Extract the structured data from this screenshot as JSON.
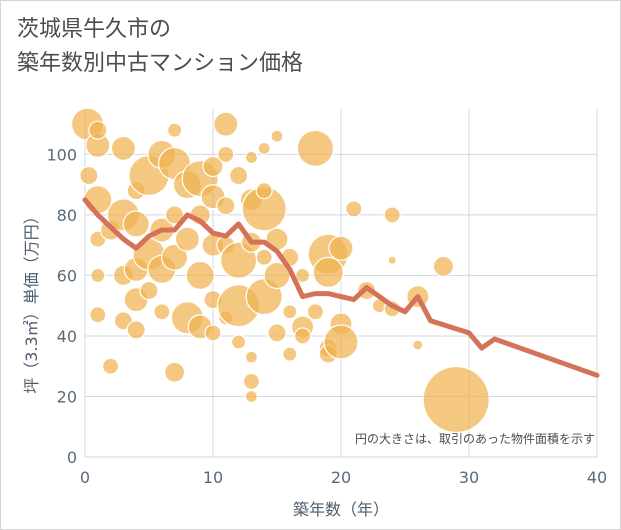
{
  "title_line1": "茨城県牛久市の",
  "title_line2": "築年数別中古マンション価格",
  "colors": {
    "bubble": "#f0b34f",
    "line": "#d4725a",
    "grid": "#cfd8e0",
    "bubble_stroke": "#ffffff"
  },
  "chart_data": {
    "type": "scatter",
    "xlabel": "築年数（年）",
    "ylabel": "坪（3.3㎡）単価（万円）",
    "xlim": [
      0,
      40
    ],
    "ylim": [
      0,
      115
    ],
    "xticks": [
      "0",
      "10",
      "20",
      "30",
      "40"
    ],
    "yticks": [
      "0",
      "20",
      "40",
      "60",
      "80",
      "100"
    ],
    "grid": true,
    "annotation": "円の大きさは、取引のあった物件面積を示す",
    "bubbles": [
      {
        "x": 0.2,
        "y": 110,
        "s": 16
      },
      {
        "x": 0.3,
        "y": 93,
        "s": 9
      },
      {
        "x": 1,
        "y": 103,
        "s": 12
      },
      {
        "x": 1,
        "y": 85,
        "s": 14
      },
      {
        "x": 1,
        "y": 72,
        "s": 8
      },
      {
        "x": 1,
        "y": 60,
        "s": 7
      },
      {
        "x": 1,
        "y": 47,
        "s": 8
      },
      {
        "x": 2,
        "y": 30,
        "s": 8
      },
      {
        "x": 1,
        "y": 108,
        "s": 9
      },
      {
        "x": 2,
        "y": 75,
        "s": 10
      },
      {
        "x": 3,
        "y": 102,
        "s": 12
      },
      {
        "x": 3,
        "y": 80,
        "s": 16
      },
      {
        "x": 3,
        "y": 60,
        "s": 10
      },
      {
        "x": 3,
        "y": 45,
        "s": 9
      },
      {
        "x": 4,
        "y": 88,
        "s": 9
      },
      {
        "x": 4,
        "y": 77,
        "s": 13
      },
      {
        "x": 4,
        "y": 62,
        "s": 12
      },
      {
        "x": 4,
        "y": 52,
        "s": 12
      },
      {
        "x": 4,
        "y": 42,
        "s": 9
      },
      {
        "x": 5,
        "y": 93,
        "s": 20
      },
      {
        "x": 5,
        "y": 67,
        "s": 16
      },
      {
        "x": 5,
        "y": 55,
        "s": 9
      },
      {
        "x": 6,
        "y": 100,
        "s": 14
      },
      {
        "x": 6,
        "y": 75,
        "s": 12
      },
      {
        "x": 6,
        "y": 62,
        "s": 14
      },
      {
        "x": 6,
        "y": 48,
        "s": 8
      },
      {
        "x": 7,
        "y": 97,
        "s": 16
      },
      {
        "x": 7,
        "y": 80,
        "s": 9
      },
      {
        "x": 7,
        "y": 66,
        "s": 13
      },
      {
        "x": 7,
        "y": 28,
        "s": 10
      },
      {
        "x": 7,
        "y": 108,
        "s": 7
      },
      {
        "x": 8,
        "y": 90,
        "s": 14
      },
      {
        "x": 8,
        "y": 72,
        "s": 12
      },
      {
        "x": 8,
        "y": 46,
        "s": 16
      },
      {
        "x": 9,
        "y": 92,
        "s": 18
      },
      {
        "x": 9,
        "y": 60,
        "s": 14
      },
      {
        "x": 9,
        "y": 43,
        "s": 12
      },
      {
        "x": 9,
        "y": 80,
        "s": 10
      },
      {
        "x": 10,
        "y": 96,
        "s": 10
      },
      {
        "x": 10,
        "y": 86,
        "s": 12
      },
      {
        "x": 10,
        "y": 70,
        "s": 11
      },
      {
        "x": 10,
        "y": 52,
        "s": 9
      },
      {
        "x": 10,
        "y": 41,
        "s": 8
      },
      {
        "x": 11,
        "y": 110,
        "s": 12
      },
      {
        "x": 11,
        "y": 100,
        "s": 8
      },
      {
        "x": 11,
        "y": 83,
        "s": 9
      },
      {
        "x": 11,
        "y": 70,
        "s": 9
      },
      {
        "x": 11,
        "y": 46,
        "s": 7
      },
      {
        "x": 12,
        "y": 93,
        "s": 9
      },
      {
        "x": 12,
        "y": 65,
        "s": 18
      },
      {
        "x": 12,
        "y": 50,
        "s": 21
      },
      {
        "x": 12,
        "y": 38,
        "s": 7
      },
      {
        "x": 13,
        "y": 85,
        "s": 11
      },
      {
        "x": 13,
        "y": 71,
        "s": 10
      },
      {
        "x": 13,
        "y": 33,
        "s": 6
      },
      {
        "x": 13,
        "y": 25,
        "s": 8
      },
      {
        "x": 13,
        "y": 20,
        "s": 6
      },
      {
        "x": 13,
        "y": 99,
        "s": 6
      },
      {
        "x": 14,
        "y": 82,
        "s": 22
      },
      {
        "x": 14,
        "y": 88,
        "s": 8
      },
      {
        "x": 14,
        "y": 66,
        "s": 8
      },
      {
        "x": 14,
        "y": 53,
        "s": 18
      },
      {
        "x": 14,
        "y": 102,
        "s": 6
      },
      {
        "x": 15,
        "y": 72,
        "s": 11
      },
      {
        "x": 15,
        "y": 60,
        "s": 13
      },
      {
        "x": 15,
        "y": 41,
        "s": 9
      },
      {
        "x": 15,
        "y": 106,
        "s": 6
      },
      {
        "x": 16,
        "y": 66,
        "s": 9
      },
      {
        "x": 16,
        "y": 48,
        "s": 7
      },
      {
        "x": 16,
        "y": 34,
        "s": 7
      },
      {
        "x": 17,
        "y": 43,
        "s": 11
      },
      {
        "x": 17,
        "y": 40,
        "s": 8
      },
      {
        "x": 17,
        "y": 60,
        "s": 7
      },
      {
        "x": 18,
        "y": 102,
        "s": 18
      },
      {
        "x": 18,
        "y": 48,
        "s": 8
      },
      {
        "x": 19,
        "y": 67,
        "s": 20
      },
      {
        "x": 19,
        "y": 61,
        "s": 15
      },
      {
        "x": 19,
        "y": 36,
        "s": 9
      },
      {
        "x": 19,
        "y": 34,
        "s": 9
      },
      {
        "x": 20,
        "y": 69,
        "s": 12
      },
      {
        "x": 20,
        "y": 44,
        "s": 11
      },
      {
        "x": 20,
        "y": 38,
        "s": 17
      },
      {
        "x": 21,
        "y": 82,
        "s": 8
      },
      {
        "x": 22,
        "y": 55,
        "s": 9
      },
      {
        "x": 23,
        "y": 50,
        "s": 7
      },
      {
        "x": 24,
        "y": 80,
        "s": 8
      },
      {
        "x": 24,
        "y": 65,
        "s": 4
      },
      {
        "x": 24,
        "y": 49,
        "s": 8
      },
      {
        "x": 26,
        "y": 53,
        "s": 11
      },
      {
        "x": 26,
        "y": 37,
        "s": 5
      },
      {
        "x": 28,
        "y": 63,
        "s": 10
      },
      {
        "x": 29,
        "y": 19,
        "s": 33
      }
    ],
    "series": [
      {
        "x": [
          0,
          1,
          2,
          3,
          4,
          5,
          6,
          7,
          8,
          9,
          10,
          11,
          12,
          13,
          14,
          15,
          16,
          17,
          18,
          19,
          20,
          21,
          22,
          23,
          24,
          25,
          26,
          27,
          30,
          31,
          32,
          40
        ],
        "values": [
          85,
          80,
          76,
          72,
          69,
          73,
          75,
          75,
          80,
          78,
          74,
          73,
          77,
          71,
          71,
          68,
          62,
          53,
          54,
          54,
          53,
          52,
          56,
          53,
          50,
          48,
          53,
          45,
          41,
          36,
          39,
          27
        ]
      }
    ]
  }
}
